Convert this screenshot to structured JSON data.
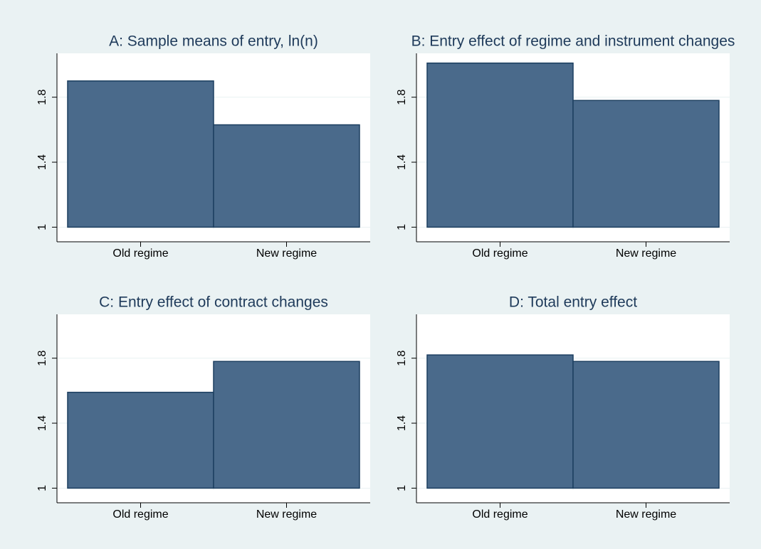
{
  "chart_data": [
    {
      "type": "bar",
      "title": "A: Sample means of entry, ln(n)",
      "categories": [
        "Old regime",
        "New regime"
      ],
      "values": [
        1.9,
        1.63
      ],
      "color": "#4a6a8b",
      "ylim": [
        0.91,
        2.07
      ],
      "yticks": [
        1,
        1.4,
        1.8
      ],
      "grid": true
    },
    {
      "type": "bar",
      "title": "B: Entry effect of regime and instrument changes",
      "categories": [
        "Old regime",
        "New regime"
      ],
      "values": [
        2.01,
        1.78
      ],
      "color": "#4a6a8b",
      "ylim": [
        0.91,
        2.07
      ],
      "yticks": [
        1,
        1.4,
        1.8
      ],
      "grid": true
    },
    {
      "type": "bar",
      "title": "C: Entry effect of contract changes",
      "categories": [
        "Old regime",
        "New regime"
      ],
      "values": [
        1.59,
        1.78
      ],
      "color": "#4a6a8b",
      "ylim": [
        0.91,
        2.07
      ],
      "yticks": [
        1,
        1.4,
        1.8
      ],
      "grid": true
    },
    {
      "type": "bar",
      "title": "D: Total entry effect",
      "categories": [
        "Old regime",
        "New regime"
      ],
      "values": [
        1.82,
        1.78
      ],
      "color": "#4a6a8b",
      "ylim": [
        0.91,
        2.07
      ],
      "yticks": [
        1,
        1.4,
        1.8
      ],
      "grid": true
    }
  ]
}
